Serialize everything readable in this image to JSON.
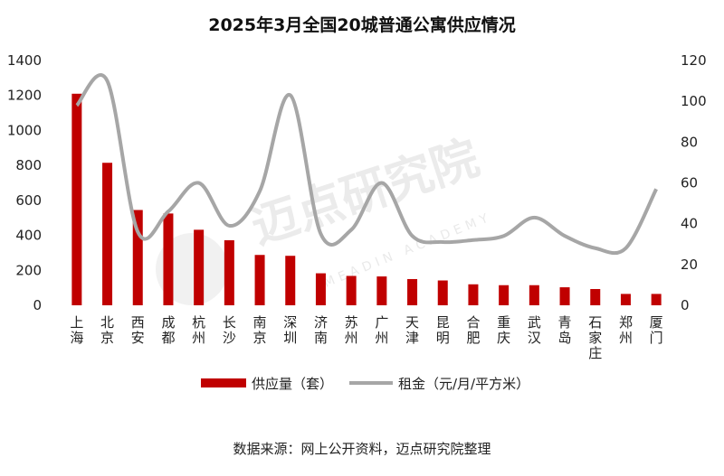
{
  "chart_data": {
    "type": "bar",
    "title": "2025年3月全国20城普通公寓供应情况",
    "categories": [
      "上海",
      "北京",
      "西安",
      "成都",
      "杭州",
      "长沙",
      "南京",
      "深圳",
      "济南",
      "苏州",
      "广州",
      "天津",
      "昆明",
      "合肥",
      "重庆",
      "武汉",
      "青岛",
      "石家庄",
      "郑州",
      "厦门"
    ],
    "series": [
      {
        "name": "供应量（套）",
        "type": "bar",
        "axis": "left",
        "color": "#c00000",
        "values": [
          1210,
          815,
          545,
          525,
          432,
          372,
          288,
          283,
          183,
          168,
          165,
          150,
          142,
          120,
          115,
          115,
          103,
          93,
          65,
          65
        ]
      },
      {
        "name": "租金（元/月/平方米）",
        "type": "line",
        "axis": "right",
        "color": "#a6a6a6",
        "values": [
          98,
          110,
          36,
          46,
          60,
          39,
          56,
          103,
          35,
          37,
          60,
          34,
          31,
          32,
          34,
          43,
          34,
          28,
          28,
          57
        ]
      }
    ],
    "ylim_left": [
      0,
      1400
    ],
    "yticks_left": [
      "0",
      "200",
      "400",
      "600",
      "800",
      "1000",
      "1200",
      "1400"
    ],
    "ylim_right": [
      0,
      120
    ],
    "yticks_right": [
      "0",
      "20",
      "40",
      "60",
      "80",
      "100",
      "120"
    ],
    "grid": false,
    "legend": "bottom-center"
  },
  "watermark": {
    "text": "迈点研究院",
    "sub": "MEADIN ACADEMY"
  },
  "source": "数据来源：网上公开资料，迈点研究院整理"
}
